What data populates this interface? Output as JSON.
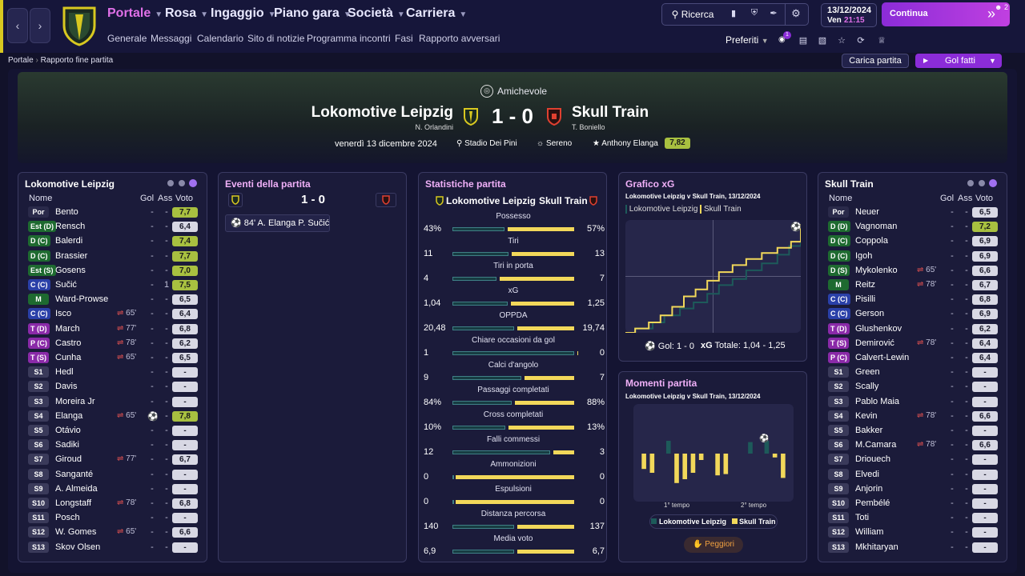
{
  "nav": {
    "main": [
      "Portale",
      "Rosa",
      "Ingaggio",
      "Piano gara",
      "Società",
      "Carriera"
    ],
    "sub": [
      "Generale",
      "Messaggi",
      "Calendario",
      "Sito di notizie",
      "Programma incontri",
      "Fasi",
      "Rapporto avversari"
    ],
    "search": "Ricerca",
    "date": "13/12/2024",
    "day": "Ven",
    "time": "21:15",
    "continue": "Continua",
    "notif_count": "2",
    "prefs": "Preferiti",
    "prefs_badge": "1"
  },
  "breadcrumb": [
    "Portale",
    "Rapporto fine partita"
  ],
  "actions": {
    "load": "Carica partita",
    "goals": "Gol fatti"
  },
  "match": {
    "competition": "Amichevole",
    "home": "Lokomotive Leipzig",
    "away": "Skull Train",
    "score": "1 - 0",
    "home_coach": "N. Orlandini",
    "away_coach": "T. Boniello",
    "date": "venerdì 13 dicembre 2024",
    "stadium": "Stadio Dei Pini",
    "weather": "Sereno",
    "motm": "Anthony Elanga",
    "motm_rating": "7,82"
  },
  "cols": {
    "name": "Nome",
    "gol": "Gol",
    "ass": "Ass",
    "voto": "Voto"
  },
  "colors": {
    "home": "#1d5a5a",
    "away": "#f2d85a",
    "bar_home_border": "#3f7f86",
    "accent": "#8b2cd8"
  },
  "home_players": [
    {
      "pos": "Por",
      "name": "Bento",
      "sub": "",
      "gol": "-",
      "ass": "-",
      "rating": "7,7"
    },
    {
      "pos": "Est (D)",
      "name": "Rensch",
      "sub": "",
      "gol": "-",
      "ass": "-",
      "rating": "6,4"
    },
    {
      "pos": "D (C)",
      "name": "Balerdi",
      "sub": "",
      "gol": "-",
      "ass": "-",
      "rating": "7,4"
    },
    {
      "pos": "D (C)",
      "name": "Brassier",
      "sub": "",
      "gol": "-",
      "ass": "-",
      "rating": "7,7"
    },
    {
      "pos": "Est (S)",
      "name": "Gosens",
      "sub": "",
      "gol": "-",
      "ass": "-",
      "rating": "7,0"
    },
    {
      "pos": "C (C)",
      "name": "Sučić",
      "sub": "",
      "gol": "-",
      "ass": "1",
      "rating": "7,5"
    },
    {
      "pos": "M",
      "name": "Ward-Prowse",
      "sub": "",
      "gol": "-",
      "ass": "-",
      "rating": "6,5"
    },
    {
      "pos": "C (C)",
      "name": "Isco",
      "sub": "65'",
      "gol": "-",
      "ass": "-",
      "rating": "6,4"
    },
    {
      "pos": "T (D)",
      "name": "March",
      "sub": "77'",
      "gol": "-",
      "ass": "-",
      "rating": "6,8"
    },
    {
      "pos": "P (C)",
      "name": "Castro",
      "sub": "78'",
      "gol": "-",
      "ass": "-",
      "rating": "6,2"
    },
    {
      "pos": "T (S)",
      "name": "Cunha",
      "sub": "65'",
      "gol": "-",
      "ass": "-",
      "rating": "6,5"
    },
    {
      "pos": "S1",
      "name": "Hedl",
      "sub": "",
      "gol": "-",
      "ass": "-",
      "rating": "-"
    },
    {
      "pos": "S2",
      "name": "Davis",
      "sub": "",
      "gol": "-",
      "ass": "-",
      "rating": "-"
    },
    {
      "pos": "S3",
      "name": "Moreira Jr",
      "sub": "",
      "gol": "-",
      "ass": "-",
      "rating": "-"
    },
    {
      "pos": "S4",
      "name": "Elanga",
      "sub": "65'",
      "gol": "⚽",
      "ass": "-",
      "rating": "7,8"
    },
    {
      "pos": "S5",
      "name": "Otávio",
      "sub": "",
      "gol": "-",
      "ass": "-",
      "rating": "-"
    },
    {
      "pos": "S6",
      "name": "Sadiki",
      "sub": "",
      "gol": "-",
      "ass": "-",
      "rating": "-"
    },
    {
      "pos": "S7",
      "name": "Giroud",
      "sub": "77'",
      "gol": "-",
      "ass": "-",
      "rating": "6,7"
    },
    {
      "pos": "S8",
      "name": "Sanganté",
      "sub": "",
      "gol": "-",
      "ass": "-",
      "rating": "-"
    },
    {
      "pos": "S9",
      "name": "A. Almeida",
      "sub": "",
      "gol": "-",
      "ass": "-",
      "rating": "-"
    },
    {
      "pos": "S10",
      "name": "Longstaff",
      "sub": "78'",
      "gol": "-",
      "ass": "-",
      "rating": "6,8"
    },
    {
      "pos": "S11",
      "name": "Posch",
      "sub": "",
      "gol": "-",
      "ass": "-",
      "rating": "-"
    },
    {
      "pos": "S12",
      "name": "W. Gomes",
      "sub": "65'",
      "gol": "-",
      "ass": "-",
      "rating": "6,6"
    },
    {
      "pos": "S13",
      "name": "Skov Olsen",
      "sub": "",
      "gol": "-",
      "ass": "-",
      "rating": "-"
    }
  ],
  "away_players": [
    {
      "pos": "Por",
      "name": "Neuer",
      "sub": "",
      "gol": "-",
      "ass": "-",
      "rating": "6,5"
    },
    {
      "pos": "D (D)",
      "name": "Vagnoman",
      "sub": "",
      "gol": "-",
      "ass": "-",
      "rating": "7,2"
    },
    {
      "pos": "D (C)",
      "name": "Coppola",
      "sub": "",
      "gol": "-",
      "ass": "-",
      "rating": "6,9"
    },
    {
      "pos": "D (C)",
      "name": "Igoh",
      "sub": "",
      "gol": "-",
      "ass": "-",
      "rating": "6,9"
    },
    {
      "pos": "D (S)",
      "name": "Mykolenko",
      "sub": "65'",
      "gol": "-",
      "ass": "-",
      "rating": "6,6"
    },
    {
      "pos": "M",
      "name": "Reitz",
      "sub": "78'",
      "gol": "-",
      "ass": "-",
      "rating": "6,7"
    },
    {
      "pos": "C (C)",
      "name": "Pisilli",
      "sub": "",
      "gol": "-",
      "ass": "-",
      "rating": "6,8"
    },
    {
      "pos": "C (C)",
      "name": "Gerson",
      "sub": "",
      "gol": "-",
      "ass": "-",
      "rating": "6,9"
    },
    {
      "pos": "T (D)",
      "name": "Glushenkov",
      "sub": "",
      "gol": "-",
      "ass": "-",
      "rating": "6,2"
    },
    {
      "pos": "T (S)",
      "name": "Demirović",
      "sub": "78'",
      "gol": "-",
      "ass": "-",
      "rating": "6,4"
    },
    {
      "pos": "P (C)",
      "name": "Calvert-Lewin",
      "sub": "",
      "gol": "-",
      "ass": "-",
      "rating": "6,4"
    },
    {
      "pos": "S1",
      "name": "Green",
      "sub": "",
      "gol": "-",
      "ass": "-",
      "rating": "-"
    },
    {
      "pos": "S2",
      "name": "Scally",
      "sub": "",
      "gol": "-",
      "ass": "-",
      "rating": "-"
    },
    {
      "pos": "S3",
      "name": "Pablo Maia",
      "sub": "",
      "gol": "-",
      "ass": "-",
      "rating": "-"
    },
    {
      "pos": "S4",
      "name": "Kevin",
      "sub": "78'",
      "gol": "-",
      "ass": "-",
      "rating": "6,6"
    },
    {
      "pos": "S5",
      "name": "Bakker",
      "sub": "",
      "gol": "-",
      "ass": "-",
      "rating": "-"
    },
    {
      "pos": "S6",
      "name": "M.Camara",
      "sub": "78'",
      "gol": "-",
      "ass": "-",
      "rating": "6,6"
    },
    {
      "pos": "S7",
      "name": "Driouech",
      "sub": "",
      "gol": "-",
      "ass": "-",
      "rating": "-"
    },
    {
      "pos": "S8",
      "name": "Elvedi",
      "sub": "",
      "gol": "-",
      "ass": "-",
      "rating": "-"
    },
    {
      "pos": "S9",
      "name": "Anjorin",
      "sub": "",
      "gol": "-",
      "ass": "-",
      "rating": "-"
    },
    {
      "pos": "S10",
      "name": "Pembélé",
      "sub": "",
      "gol": "-",
      "ass": "-",
      "rating": "-"
    },
    {
      "pos": "S11",
      "name": "Toti",
      "sub": "",
      "gol": "-",
      "ass": "-",
      "rating": "-"
    },
    {
      "pos": "S12",
      "name": "William",
      "sub": "",
      "gol": "-",
      "ass": "-",
      "rating": "-"
    },
    {
      "pos": "S13",
      "name": "Mkhitaryan",
      "sub": "",
      "gol": "-",
      "ass": "-",
      "rating": "-"
    }
  ],
  "events": {
    "title": "Eventi della partita",
    "score": "1 - 0",
    "items": [
      {
        "text": "84' A. Elanga P. Sučić"
      }
    ]
  },
  "stats": {
    "title": "Statistiche partita",
    "home": "Lokomotive Leipzig",
    "away": "Skull Train",
    "rows": [
      {
        "label": "Possesso",
        "home": "43%",
        "away": "57%",
        "hv": 43,
        "av": 57
      },
      {
        "label": "Tiri",
        "home": "11",
        "away": "13",
        "hv": 11,
        "av": 13
      },
      {
        "label": "Tiri in porta",
        "home": "4",
        "away": "7",
        "hv": 4,
        "av": 7
      },
      {
        "label": "xG",
        "home": "1,04",
        "away": "1,25",
        "hv": 1.04,
        "av": 1.25
      },
      {
        "label": "OPPDA",
        "home": "20,48",
        "away": "19,74",
        "hv": 20.48,
        "av": 19.74
      },
      {
        "label": "Chiare occasioni da gol",
        "home": "1",
        "away": "0",
        "hv": 1,
        "av": 0
      },
      {
        "label": "Calci d'angolo",
        "home": "9",
        "away": "7",
        "hv": 9,
        "av": 7
      },
      {
        "label": "Passaggi completati",
        "home": "84%",
        "away": "88%",
        "hv": 84,
        "av": 88
      },
      {
        "label": "Cross completati",
        "home": "10%",
        "away": "13%",
        "hv": 10,
        "av": 13
      },
      {
        "label": "Falli commessi",
        "home": "12",
        "away": "3",
        "hv": 12,
        "av": 3
      },
      {
        "label": "Ammonizioni",
        "home": "0",
        "away": "0",
        "hv": 0,
        "av": 0
      },
      {
        "label": "Espulsioni",
        "home": "0",
        "away": "0",
        "hv": 0,
        "av": 0
      },
      {
        "label": "Distanza percorsa",
        "home": "140",
        "away": "137",
        "hv": 140,
        "av": 137
      },
      {
        "label": "Media voto",
        "home": "6,9",
        "away": "6,7",
        "hv": 6.9,
        "av": 6.7
      }
    ]
  },
  "xg": {
    "title": "Grafico xG",
    "subtitle": "Lokomotive Leipzig v Skull Train, 13/12/2024",
    "legend_home": "Lokomotive Leipzig",
    "legend_away": "Skull Train",
    "gol_label": "Gol: 1 - 0",
    "xg_label": "xG",
    "totale_label": "Totale: 1,04 - 1,25"
  },
  "moments": {
    "title": "Momenti partita",
    "subtitle": "Lokomotive Leipzig v Skull Train, 13/12/2024",
    "half1": "1° tempo",
    "half2": "2° tempo",
    "legend_home": "Lokomotive Leipzig",
    "legend_away": "Skull Train",
    "button": "Peggiori"
  },
  "chart_data": [
    {
      "type": "line",
      "title": "Grafico xG",
      "series": [
        {
          "name": "Lokomotive Leipzig",
          "x": [
            0,
            5,
            14,
            20,
            28,
            35,
            42,
            48,
            55,
            62,
            70,
            78,
            84,
            90
          ],
          "y": [
            0,
            0.05,
            0.12,
            0.2,
            0.28,
            0.35,
            0.45,
            0.55,
            0.62,
            0.72,
            0.8,
            0.9,
            1.0,
            1.04
          ]
        },
        {
          "name": "Skull Train",
          "x": [
            0,
            5,
            12,
            18,
            24,
            30,
            36,
            42,
            48,
            55,
            62,
            70,
            78,
            85,
            90
          ],
          "y": [
            0,
            0.05,
            0.12,
            0.2,
            0.3,
            0.42,
            0.5,
            0.6,
            0.7,
            0.78,
            0.85,
            0.92,
            0.98,
            1.05,
            1.25
          ]
        }
      ],
      "xlim": [
        0,
        90
      ],
      "ylim": [
        0,
        1.3
      ]
    },
    {
      "type": "bar",
      "title": "Momenti partita",
      "categories": [
        1,
        2,
        3,
        4,
        5,
        6,
        7,
        8,
        9,
        10,
        11,
        12,
        13,
        14,
        15,
        16,
        17,
        18
      ],
      "series": [
        {
          "name": "Lokomotive Leipzig",
          "values": [
            0,
            0,
            0,
            1.0,
            0,
            0,
            0,
            0,
            0,
            0,
            0,
            0,
            0,
            0.9,
            0,
            1.0,
            0,
            0
          ]
        },
        {
          "name": "Skull Train",
          "values": [
            1.2,
            1.5,
            0,
            0,
            2.3,
            2.0,
            1.5,
            0.5,
            0,
            1.7,
            1.6,
            0,
            0,
            0,
            0,
            0,
            0.3,
            1.9
          ]
        }
      ]
    }
  ]
}
